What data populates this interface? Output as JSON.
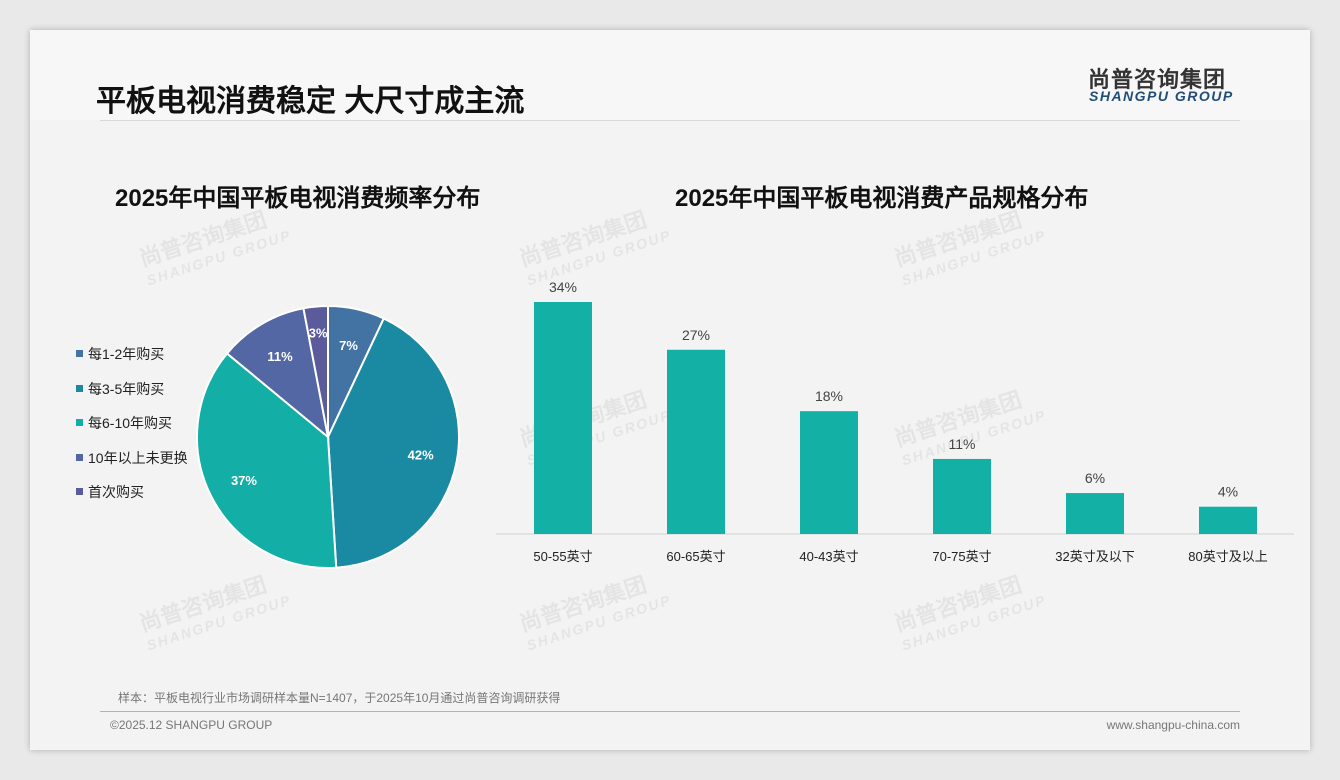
{
  "header": {
    "title": "平板电视消费稳定 大尺寸成主流",
    "logo_cn": "尚普咨询集团",
    "logo_en": "SHANGPU GROUP"
  },
  "watermark": {
    "cn": "尚普咨询集团",
    "en": "SHANGPU GROUP"
  },
  "chart_data": [
    {
      "type": "pie",
      "title": "2025年中国平板电视消费频率分布",
      "legend_position": "left",
      "labels": [
        "每1-2年购买",
        "每3-5年购买",
        "每6-10年购买",
        "10年以上未更换",
        "首次购买"
      ],
      "values": [
        7,
        42,
        37,
        11,
        3
      ],
      "value_labels": [
        "7%",
        "42%",
        "37%",
        "11%",
        "3%"
      ],
      "colors": [
        "#4273a3",
        "#1a8aa2",
        "#13aea6",
        "#5267a3",
        "#5b5b9c"
      ]
    },
    {
      "type": "bar",
      "title": "2025年中国平板电视消费产品规格分布",
      "categories": [
        "50-55英寸",
        "60-65英寸",
        "40-43英寸",
        "70-75英寸",
        "32英寸及以下",
        "80英寸及以上"
      ],
      "values": [
        34,
        27,
        18,
        11,
        6,
        4
      ],
      "value_labels": [
        "34%",
        "27%",
        "18%",
        "11%",
        "6%",
        "4%"
      ],
      "color": "#13b0a5"
    }
  ],
  "footer": {
    "note": "样本：平板电视行业市场调研样本量N=1407，于2025年10月通过尚普咨询调研获得",
    "copyright": "©2025.12 SHANGPU GROUP",
    "url": "www.shangpu-china.com"
  }
}
